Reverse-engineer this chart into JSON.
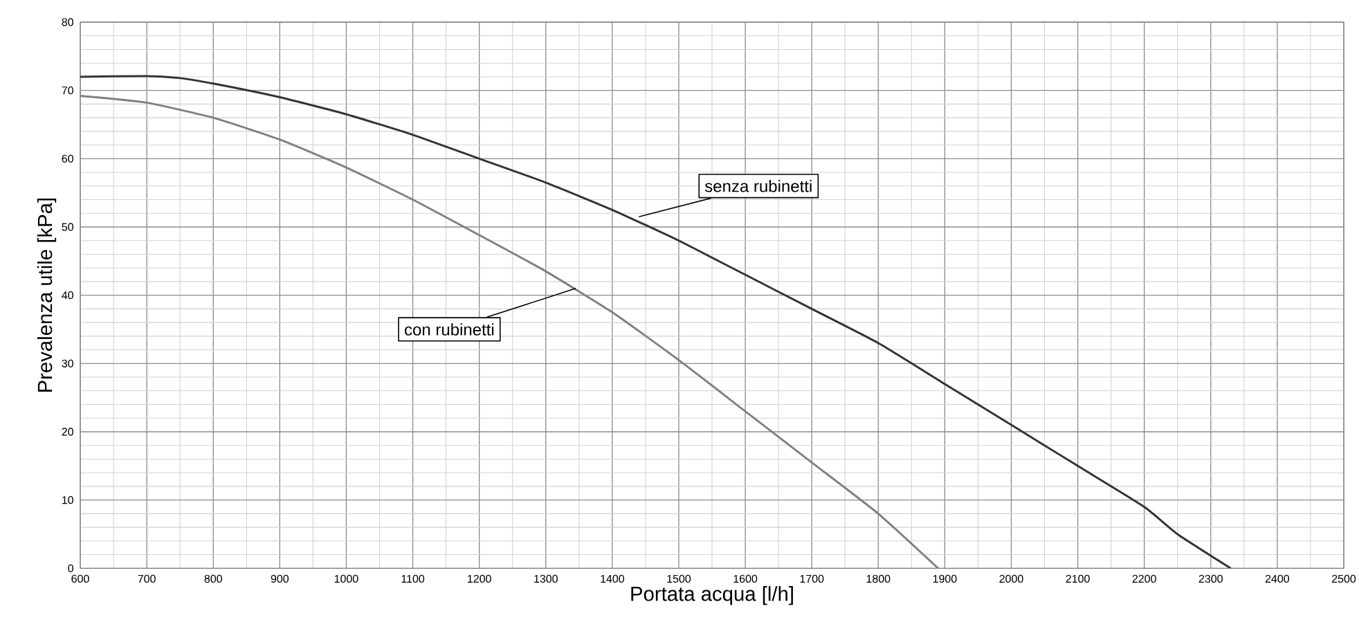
{
  "chart_data": {
    "type": "line",
    "xlabel": "Portata acqua [l/h]",
    "ylabel": "Prevalenza utile [kPa]",
    "xlim": [
      600,
      2500
    ],
    "xticks": [
      600,
      700,
      800,
      900,
      1000,
      1100,
      1200,
      1300,
      1400,
      1500,
      1600,
      1700,
      1800,
      1900,
      2000,
      2100,
      2200,
      2300,
      2400,
      2500
    ],
    "ylim": [
      0,
      80
    ],
    "yticks": [
      0,
      10,
      20,
      30,
      40,
      50,
      60,
      70,
      80
    ],
    "grid": true,
    "marker": "none",
    "line_style": "solid",
    "series": [
      {
        "color": "#333333",
        "x": [
          600,
          700,
          750,
          800,
          900,
          1000,
          1100,
          1200,
          1300,
          1400,
          1500,
          1600,
          1700,
          1800,
          1900,
          2000,
          2100,
          2200,
          2250,
          2330
        ],
        "values": [
          72,
          72.1,
          71.8,
          71,
          69,
          66.5,
          63.5,
          60,
          56.5,
          52.5,
          48,
          43,
          38,
          33,
          27,
          21,
          15,
          9,
          5,
          0
        ]
      },
      {
        "color": "#808080",
        "x": [
          600,
          700,
          800,
          900,
          1000,
          1100,
          1200,
          1300,
          1400,
          1500,
          1600,
          1700,
          1800,
          1890
        ],
        "values": [
          69.2,
          68.2,
          66,
          62.8,
          58.7,
          54,
          48.8,
          43.5,
          37.5,
          30.5,
          23,
          15.5,
          8,
          0
        ]
      }
    ],
    "annotations": [
      {
        "text": "senza rubinetti",
        "x": 1440,
        "y": 51.5
      },
      {
        "text": "con rubinetti",
        "x": 1345,
        "y": 41
      }
    ]
  }
}
